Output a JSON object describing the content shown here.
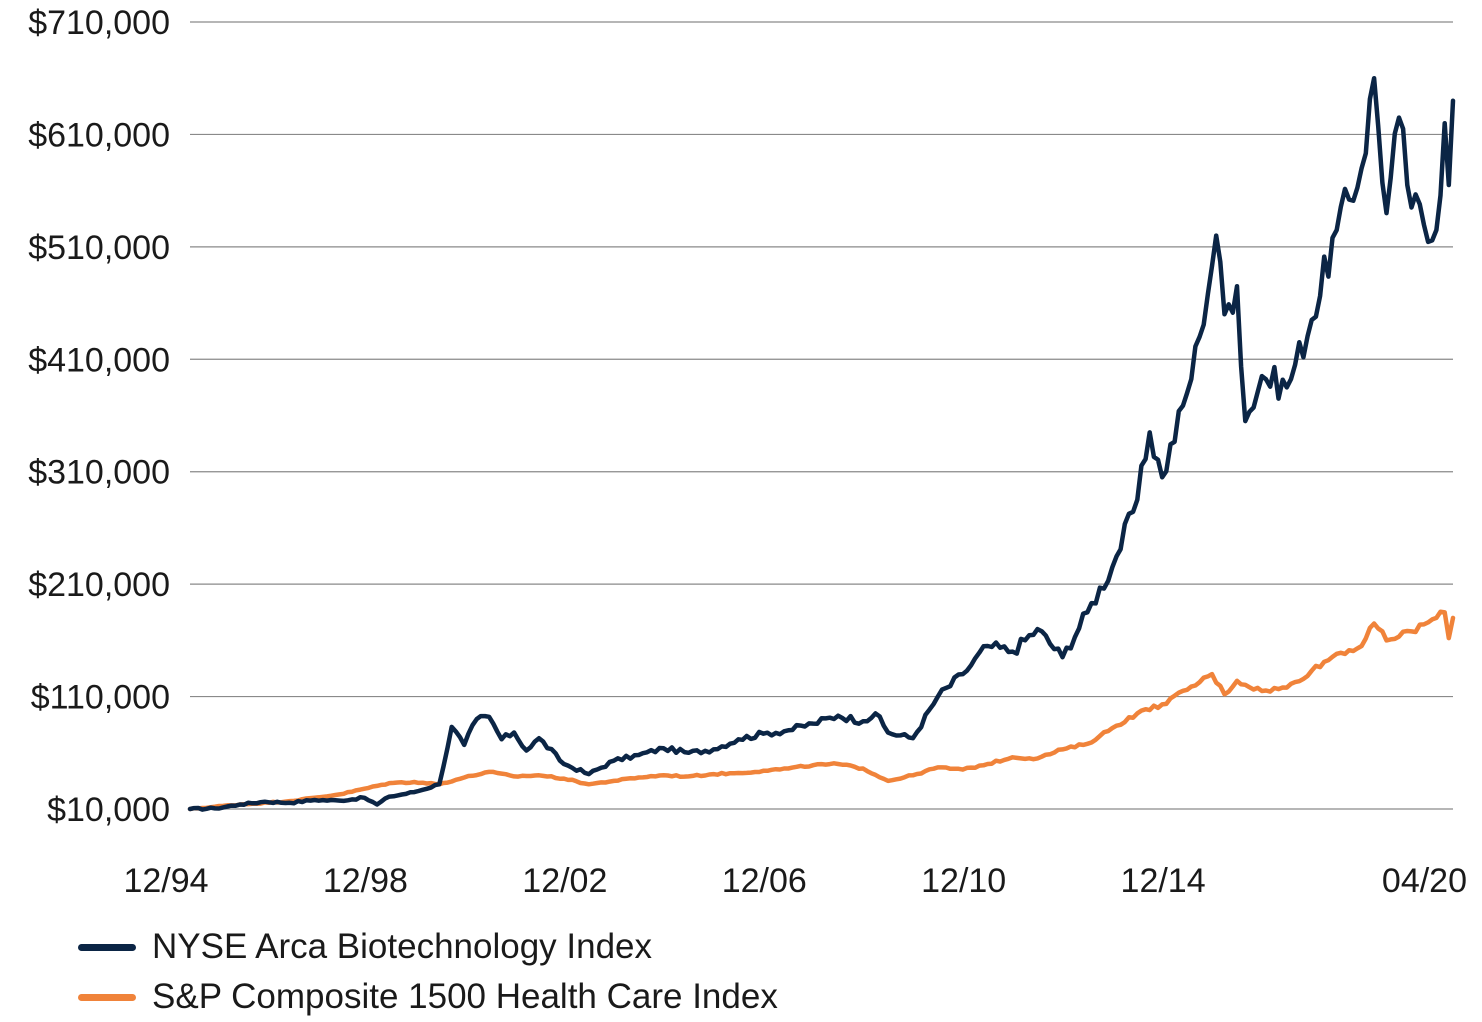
{
  "chart_data": {
    "type": "line",
    "title": "",
    "xlabel": "",
    "ylabel": "",
    "y_ticks": [
      "$710,000",
      "$610,000",
      "$510,000",
      "$410,000",
      "$310,000",
      "$210,000",
      "$110,000",
      "$10,000"
    ],
    "y_tick_values": [
      710000,
      610000,
      510000,
      410000,
      310000,
      210000,
      110000,
      10000
    ],
    "x_ticks": [
      "12/94",
      "12/98",
      "12/02",
      "12/06",
      "12/10",
      "12/14",
      "04/20"
    ],
    "x_tick_values": [
      "1994-12",
      "1998-12",
      "2002-12",
      "2006-12",
      "2010-12",
      "2014-12",
      "2020-04"
    ],
    "ylim": [
      10000,
      710000
    ],
    "xlim": [
      "1994-12",
      "2020-04"
    ],
    "grid": "horizontal",
    "legend_position": "bottom-left",
    "series": [
      {
        "name": "NYSE Arca Biotechnology Index",
        "color": "#0b2545",
        "points": [
          [
            "1994-12",
            10000
          ],
          [
            "1995-06",
            10500
          ],
          [
            "1995-12",
            14000
          ],
          [
            "1996-06",
            16500
          ],
          [
            "1996-12",
            15500
          ],
          [
            "1997-06",
            18000
          ],
          [
            "1997-12",
            17500
          ],
          [
            "1998-06",
            20000
          ],
          [
            "1998-09",
            14000
          ],
          [
            "1998-12",
            21000
          ],
          [
            "1999-06",
            25000
          ],
          [
            "1999-12",
            32000
          ],
          [
            "2000-03",
            83000
          ],
          [
            "2000-06",
            67000
          ],
          [
            "2000-09",
            90000
          ],
          [
            "2000-12",
            92000
          ],
          [
            "2001-03",
            72000
          ],
          [
            "2001-06",
            78000
          ],
          [
            "2001-09",
            62000
          ],
          [
            "2001-12",
            73000
          ],
          [
            "2002-06",
            50000
          ],
          [
            "2002-12",
            41000
          ],
          [
            "2003-06",
            53000
          ],
          [
            "2003-12",
            58000
          ],
          [
            "2004-06",
            64000
          ],
          [
            "2004-12",
            60000
          ],
          [
            "2005-06",
            63000
          ],
          [
            "2005-12",
            72000
          ],
          [
            "2006-06",
            77000
          ],
          [
            "2006-12",
            80000
          ],
          [
            "2007-06",
            86000
          ],
          [
            "2007-12",
            93000
          ],
          [
            "2008-06",
            88000
          ],
          [
            "2008-09",
            95000
          ],
          [
            "2008-12",
            78000
          ],
          [
            "2009-06",
            73000
          ],
          [
            "2009-12",
            110000
          ],
          [
            "2010-06",
            130000
          ],
          [
            "2010-12",
            155000
          ],
          [
            "2011-06",
            150000
          ],
          [
            "2011-12",
            170000
          ],
          [
            "2012-06",
            145000
          ],
          [
            "2012-12",
            185000
          ],
          [
            "2013-06",
            225000
          ],
          [
            "2013-12",
            285000
          ],
          [
            "2014-03",
            345000
          ],
          [
            "2014-06",
            305000
          ],
          [
            "2014-12",
            380000
          ],
          [
            "2015-03",
            430000
          ],
          [
            "2015-07",
            520000
          ],
          [
            "2015-09",
            450000
          ],
          [
            "2015-12",
            475000
          ],
          [
            "2016-02",
            355000
          ],
          [
            "2016-06",
            395000
          ],
          [
            "2016-12",
            385000
          ],
          [
            "2017-06",
            445000
          ],
          [
            "2017-12",
            525000
          ],
          [
            "2018-06",
            580000
          ],
          [
            "2018-09",
            660000
          ],
          [
            "2018-12",
            540000
          ],
          [
            "2019-03",
            625000
          ],
          [
            "2019-06",
            545000
          ],
          [
            "2019-12",
            525000
          ],
          [
            "2020-02",
            620000
          ],
          [
            "2020-03",
            565000
          ],
          [
            "2020-04",
            640000
          ]
        ]
      },
      {
        "name": "S&P Composite 1500 Health Care Index",
        "color": "#f0833a",
        "points": [
          [
            "1994-12",
            10000
          ],
          [
            "1995-12",
            14000
          ],
          [
            "1996-12",
            17000
          ],
          [
            "1997-12",
            23000
          ],
          [
            "1998-12",
            33000
          ],
          [
            "1999-06",
            34000
          ],
          [
            "1999-12",
            32000
          ],
          [
            "2000-06",
            38000
          ],
          [
            "2000-12",
            43000
          ],
          [
            "2001-06",
            39000
          ],
          [
            "2001-12",
            40000
          ],
          [
            "2002-06",
            37000
          ],
          [
            "2002-12",
            32000
          ],
          [
            "2003-06",
            35000
          ],
          [
            "2003-12",
            38000
          ],
          [
            "2004-06",
            40000
          ],
          [
            "2004-12",
            39000
          ],
          [
            "2005-06",
            41000
          ],
          [
            "2005-12",
            42000
          ],
          [
            "2006-06",
            44000
          ],
          [
            "2006-12",
            46000
          ],
          [
            "2007-06",
            49000
          ],
          [
            "2007-12",
            50000
          ],
          [
            "2008-06",
            46000
          ],
          [
            "2008-12",
            35000
          ],
          [
            "2009-06",
            40000
          ],
          [
            "2009-12",
            47000
          ],
          [
            "2010-06",
            45000
          ],
          [
            "2010-12",
            50000
          ],
          [
            "2011-06",
            56000
          ],
          [
            "2011-12",
            55000
          ],
          [
            "2012-06",
            63000
          ],
          [
            "2012-12",
            68000
          ],
          [
            "2013-06",
            82000
          ],
          [
            "2013-12",
            95000
          ],
          [
            "2014-06",
            103000
          ],
          [
            "2014-12",
            116000
          ],
          [
            "2015-06",
            130000
          ],
          [
            "2015-09",
            112000
          ],
          [
            "2015-12",
            124000
          ],
          [
            "2016-06",
            115000
          ],
          [
            "2016-12",
            118000
          ],
          [
            "2017-06",
            133000
          ],
          [
            "2017-12",
            148000
          ],
          [
            "2018-06",
            155000
          ],
          [
            "2018-09",
            175000
          ],
          [
            "2018-12",
            160000
          ],
          [
            "2019-06",
            168000
          ],
          [
            "2019-12",
            180000
          ],
          [
            "2020-02",
            185000
          ],
          [
            "2020-03",
            162000
          ],
          [
            "2020-04",
            180000
          ]
        ]
      }
    ]
  }
}
